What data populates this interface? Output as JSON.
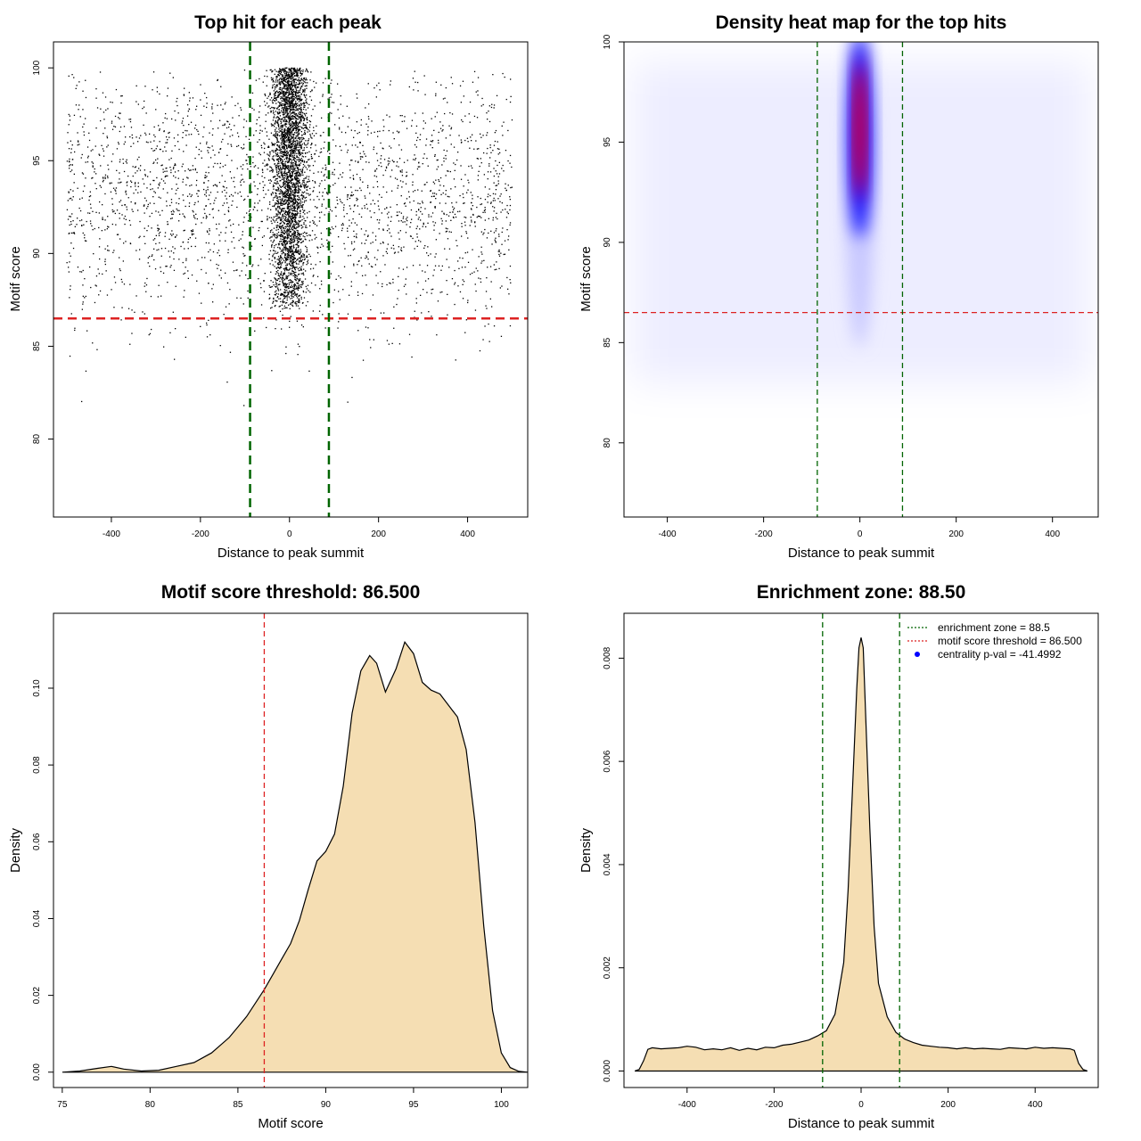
{
  "colors": {
    "green_line": "#006400",
    "red_line": "#dd2222",
    "density_fill": "#f5deb3",
    "heat_low": "#ffffff",
    "heat_mid": "#0000ff",
    "heat_high": "#ff0000",
    "point": "#000000"
  },
  "chart_data": [
    {
      "type": "scatter",
      "title": "Top hit for each peak",
      "xlabel": "Distance to peak summit",
      "ylabel": "Motif score",
      "xlim": [
        -530,
        535
      ],
      "ylim": [
        75.8,
        101.4
      ],
      "xticks": [
        -400,
        -200,
        0,
        200,
        400
      ],
      "yticks": [
        80,
        85,
        90,
        95,
        100
      ],
      "xtick_labels": [
        "-400",
        "-200",
        "0",
        "200",
        "400"
      ],
      "ytick_labels": [
        "80",
        "85",
        "90",
        "95",
        "100"
      ],
      "hlines": [
        86.5
      ],
      "vlines": [
        -88.5,
        88.5
      ],
      "point_distribution": {
        "n_background": 2600,
        "background_x_range": [
          -500,
          500
        ],
        "background_y_mode": 93,
        "n_central": 3400,
        "central_x_sd": 20,
        "central_y_range": [
          87,
          100
        ]
      }
    },
    {
      "type": "heatmap",
      "title": "Density heat map for the top hits",
      "xlabel": "Distance to peak summit",
      "ylabel": "Motif score",
      "xlim": [
        -490,
        495
      ],
      "ylim": [
        76.3,
        100.0
      ],
      "xticks": [
        -400,
        -200,
        0,
        200,
        400
      ],
      "yticks": [
        80,
        85,
        90,
        95,
        100
      ],
      "xtick_labels": [
        "-400",
        "-200",
        "0",
        "200",
        "400"
      ],
      "ytick_labels": [
        "80",
        "85",
        "90",
        "95",
        "100"
      ],
      "hlines": [
        86.5
      ],
      "vlines": [
        -88.5,
        88.5
      ],
      "hotspot": {
        "x": 0,
        "y_range": [
          92,
          98.5
        ],
        "x_width": 25
      }
    },
    {
      "type": "area",
      "title": "Motif score threshold: 86.500",
      "xlabel": "Motif score",
      "ylabel": "Density",
      "xlim": [
        74.5,
        101.5
      ],
      "ylim": [
        -0.004,
        0.1195
      ],
      "xticks": [
        75,
        80,
        85,
        90,
        95,
        100
      ],
      "yticks": [
        0,
        0.02,
        0.04,
        0.06,
        0.08,
        0.1
      ],
      "xtick_labels": [
        "75",
        "80",
        "85",
        "90",
        "95",
        "100"
      ],
      "ytick_labels": [
        "0.00",
        "0.02",
        "0.04",
        "0.06",
        "0.08",
        "0.10"
      ],
      "vlines": [
        86.5
      ],
      "x": [
        75,
        76,
        77,
        77.8,
        78.5,
        79.5,
        80.5,
        81.5,
        82.5,
        83.5,
        84.5,
        85.5,
        86.5,
        87,
        87.5,
        88,
        88.5,
        89,
        89.5,
        90,
        90.5,
        91,
        91.5,
        92,
        92.5,
        92.9,
        93.4,
        94,
        94.5,
        95,
        95.5,
        96,
        96.5,
        97,
        97.5,
        98,
        98.5,
        99,
        99.5,
        100,
        100.5,
        101,
        101.5
      ],
      "y": [
        0,
        0.0003,
        0.001,
        0.0015,
        0.0008,
        0.0003,
        0.0005,
        0.0015,
        0.0025,
        0.005,
        0.009,
        0.0145,
        0.0215,
        0.0255,
        0.0295,
        0.0335,
        0.0395,
        0.0475,
        0.055,
        0.0575,
        0.062,
        0.0745,
        0.0935,
        0.1045,
        0.1085,
        0.1065,
        0.099,
        0.105,
        0.112,
        0.109,
        0.1015,
        0.0995,
        0.0985,
        0.0955,
        0.0925,
        0.084,
        0.065,
        0.038,
        0.016,
        0.005,
        0.0012,
        0.0002,
        0
      ]
    },
    {
      "type": "area",
      "title": "Enrichment zone: 88.50",
      "xlabel": "Distance to peak summit",
      "ylabel": "Density",
      "xlim": [
        -545,
        545
      ],
      "ylim": [
        -0.00032,
        0.00887
      ],
      "xticks": [
        -400,
        -200,
        0,
        200,
        400
      ],
      "yticks": [
        0,
        0.002,
        0.004,
        0.006,
        0.008
      ],
      "xtick_labels": [
        "-400",
        "-200",
        "0",
        "200",
        "400"
      ],
      "ytick_labels": [
        "0.000",
        "0.002",
        "0.004",
        "0.006",
        "0.008"
      ],
      "vlines": [
        -88.5,
        88.5
      ],
      "x": [
        -520,
        -510,
        -500,
        -490,
        -480,
        -460,
        -440,
        -420,
        -400,
        -380,
        -360,
        -340,
        -320,
        -300,
        -280,
        -260,
        -240,
        -220,
        -200,
        -180,
        -160,
        -140,
        -120,
        -100,
        -80,
        -60,
        -40,
        -30,
        -20,
        -10,
        -5,
        0,
        5,
        10,
        20,
        30,
        40,
        60,
        80,
        100,
        120,
        140,
        160,
        180,
        200,
        220,
        240,
        260,
        280,
        300,
        320,
        340,
        360,
        380,
        400,
        420,
        440,
        460,
        480,
        490,
        500,
        510,
        520
      ],
      "y": [
        0,
        3e-05,
        0.0002,
        0.00042,
        0.00045,
        0.00043,
        0.00044,
        0.00045,
        0.00048,
        0.00046,
        0.00041,
        0.00043,
        0.00041,
        0.00045,
        0.0004,
        0.00044,
        0.00041,
        0.00046,
        0.00045,
        0.0005,
        0.00052,
        0.00056,
        0.0006,
        0.00068,
        0.00078,
        0.0011,
        0.0021,
        0.0035,
        0.0054,
        0.0074,
        0.0082,
        0.0084,
        0.0082,
        0.007,
        0.0047,
        0.0028,
        0.0017,
        0.00105,
        0.00075,
        0.00062,
        0.00055,
        0.0005,
        0.00048,
        0.00046,
        0.00045,
        0.00043,
        0.00045,
        0.00043,
        0.00044,
        0.00043,
        0.00042,
        0.00045,
        0.00044,
        0.00043,
        0.00046,
        0.00044,
        0.00045,
        0.00044,
        0.00043,
        0.0004,
        0.00015,
        3e-05,
        0
      ],
      "legend": {
        "placement": "top-right",
        "entries": [
          {
            "label": "enrichment zone = 88.5",
            "kind": "line",
            "color": "#006400"
          },
          {
            "label": "motif score threshold = 86.500",
            "kind": "line",
            "color": "#dd2222"
          },
          {
            "label": "centrality p-val = -41.4992",
            "kind": "point",
            "color": "#0000ff"
          }
        ]
      }
    }
  ]
}
